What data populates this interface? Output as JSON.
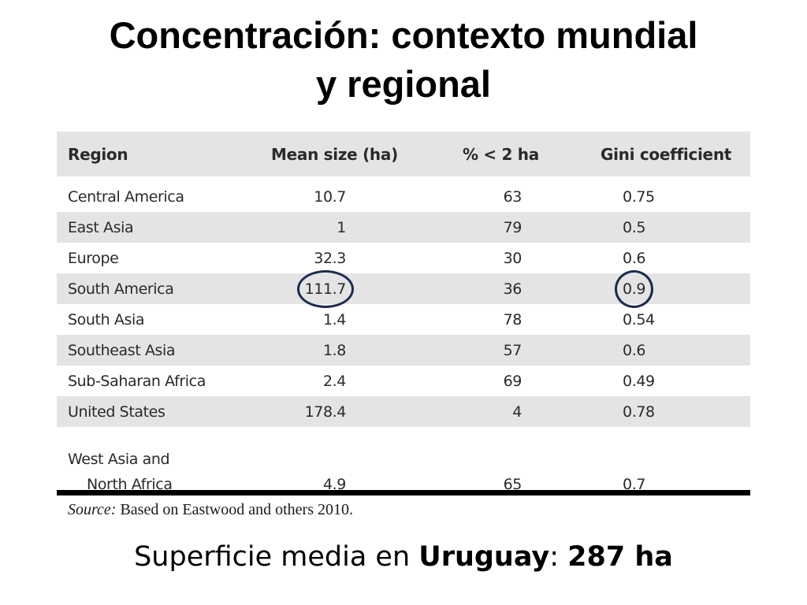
{
  "title": {
    "line1": "Concentración: contexto mundial",
    "line2": "y regional"
  },
  "table": {
    "headers": [
      "Region",
      "Mean size (ha)",
      "% < 2 ha",
      "Gini coefficient"
    ],
    "rows": [
      {
        "region": "Central America",
        "mean": "10.7",
        "pct": "63",
        "gini": "0.75"
      },
      {
        "region": "East Asia",
        "mean": "1",
        "pct": "79",
        "gini": "0.5"
      },
      {
        "region": "Europe",
        "mean": "32.3",
        "pct": "30",
        "gini": "0.6"
      },
      {
        "region": "South America",
        "mean": "111.7",
        "pct": "36",
        "gini": "0.9"
      },
      {
        "region": "South Asia",
        "mean": "1.4",
        "pct": "78",
        "gini": "0.54"
      },
      {
        "region": "Southeast Asia",
        "mean": "1.8",
        "pct": "57",
        "gini": "0.6"
      },
      {
        "region": "Sub-Saharan Africa",
        "mean": "2.4",
        "pct": "69",
        "gini": "0.49"
      },
      {
        "region": "United States",
        "mean": "178.4",
        "pct": "4",
        "gini": "0.78"
      },
      {
        "region_line1": "West Asia and",
        "region_line2": "North Africa",
        "mean": "4.9",
        "pct": "65",
        "gini": "0.7"
      }
    ]
  },
  "source": {
    "label": "Source:",
    "text": " Based on Eastwood and others 2010."
  },
  "summary": {
    "prefix": "Superficie media en ",
    "country": "Uruguay",
    "colon": ": ",
    "value": "287 ha"
  },
  "colors": {
    "shade": "#e4e4e4",
    "circle": "#1d2b4e"
  }
}
